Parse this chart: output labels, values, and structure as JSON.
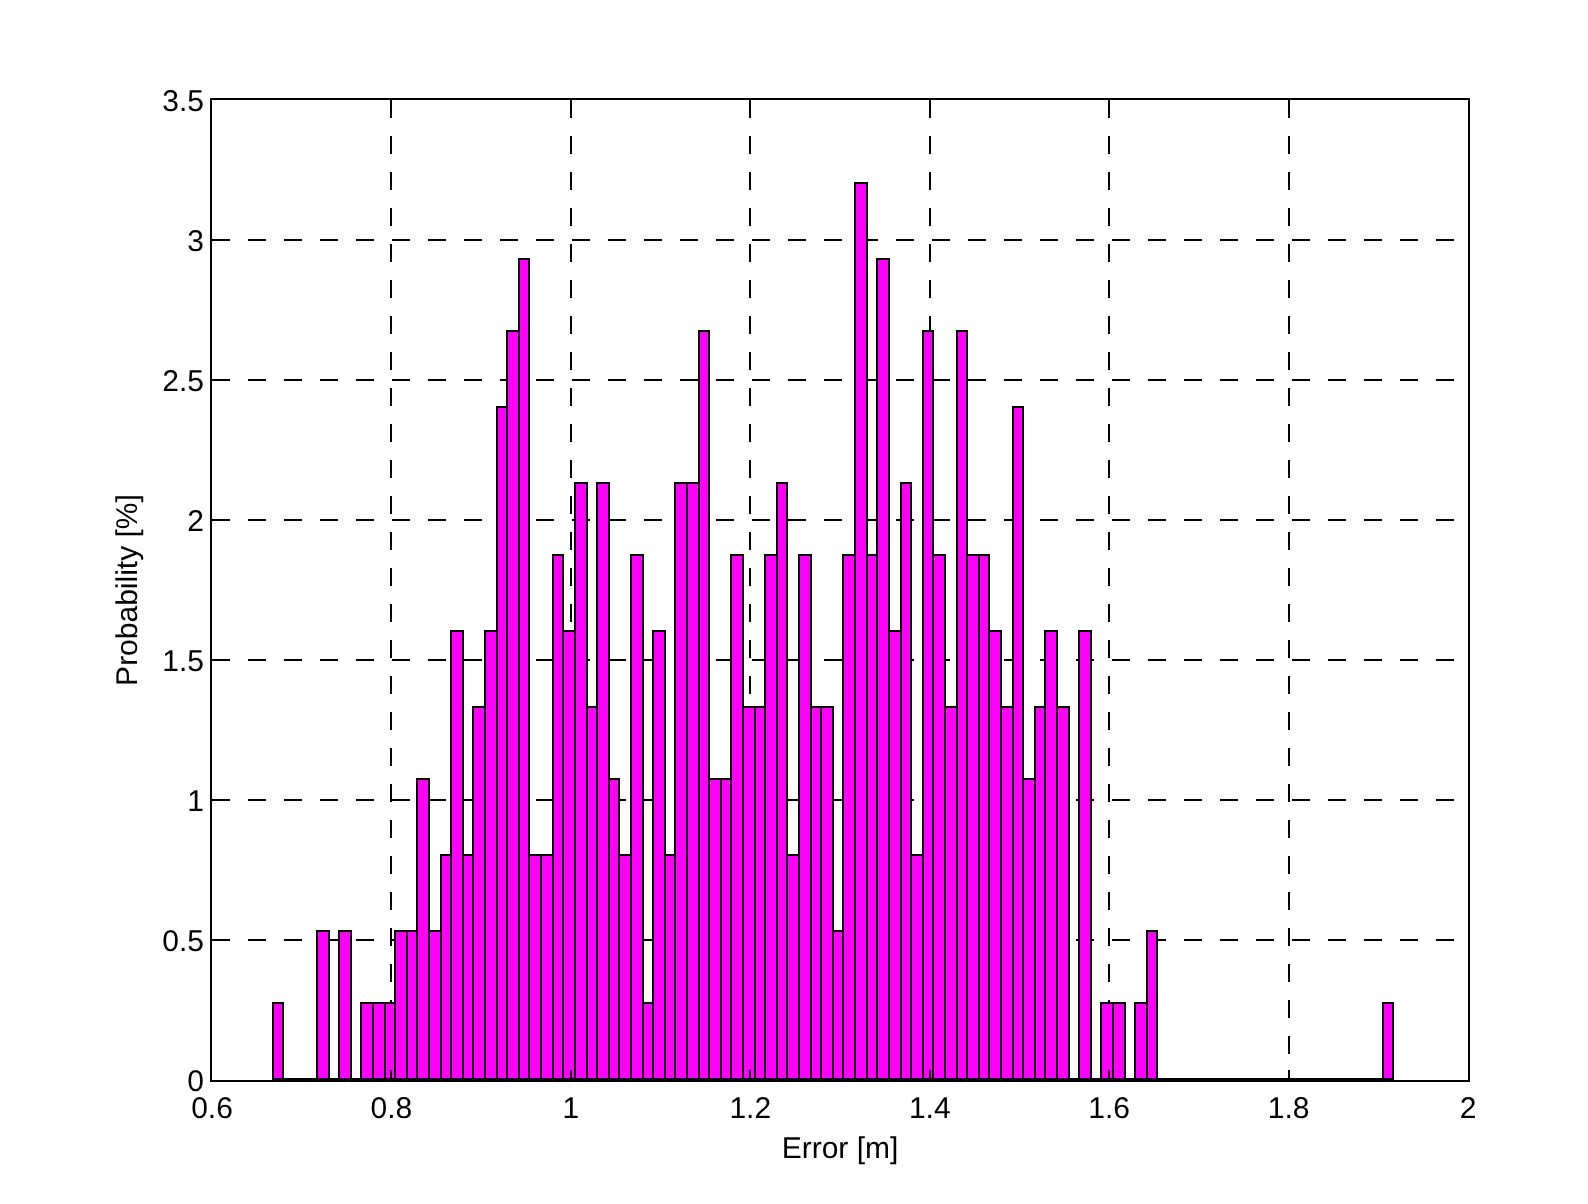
{
  "chart_data": {
    "type": "histogram",
    "xlabel": "Error [m]",
    "ylabel": "Probability [%]",
    "color": "#ff00ff",
    "bins": [
      0.668,
      0.6805,
      0.693,
      0.7055,
      0.718,
      0.7305,
      0.743,
      0.7555,
      0.768,
      0.7805,
      0.793,
      0.8055,
      0.818,
      0.8305,
      0.843,
      0.8555,
      0.868,
      0.8805,
      0.893,
      0.9055,
      0.918,
      0.9305,
      0.943,
      0.9555,
      0.968,
      0.9805,
      0.993,
      1.0055,
      1.018,
      1.0305,
      1.043,
      1.0555,
      1.068,
      1.0805,
      1.093,
      1.1055,
      1.118,
      1.1305,
      1.143,
      1.1555,
      1.168,
      1.1805,
      1.193,
      1.2055,
      1.218,
      1.2305,
      1.243,
      1.2555,
      1.268,
      1.2805,
      1.293,
      1.3055,
      1.318,
      1.3305,
      1.343,
      1.3555,
      1.368,
      1.3805,
      1.393,
      1.4055,
      1.418,
      1.4305,
      1.443,
      1.4555,
      1.468,
      1.4805,
      1.493,
      1.5055,
      1.518,
      1.5305,
      1.543,
      1.5555,
      1.568,
      1.5805,
      1.593,
      1.6055,
      1.618,
      1.6305,
      1.643,
      1.6555,
      1.668,
      1.6805,
      1.693,
      1.7055,
      1.718,
      1.7305,
      1.743,
      1.7555,
      1.768,
      1.7805,
      1.793,
      1.8055,
      1.818,
      1.8305,
      1.843,
      1.8555,
      1.868,
      1.8805,
      1.893,
      1.9055,
      1.918
    ],
    "values": [
      0.27,
      0,
      0,
      0,
      0.53,
      0,
      0.53,
      0,
      0.27,
      0.27,
      0.27,
      0.53,
      0.53,
      1.07,
      0.53,
      0.8,
      1.6,
      0.8,
      1.33,
      1.6,
      2.4,
      2.67,
      2.93,
      0.8,
      0.8,
      1.87,
      1.6,
      2.13,
      1.33,
      2.13,
      1.07,
      0.8,
      1.87,
      0.27,
      1.6,
      0.8,
      2.13,
      2.13,
      2.67,
      1.07,
      1.07,
      1.87,
      1.33,
      1.33,
      1.87,
      2.13,
      0.8,
      1.87,
      1.33,
      1.33,
      0.53,
      1.87,
      3.2,
      1.87,
      2.93,
      1.6,
      2.13,
      0.8,
      2.67,
      1.87,
      1.33,
      2.67,
      1.87,
      1.87,
      1.6,
      1.33,
      2.4,
      1.07,
      1.33,
      1.6,
      1.33,
      0,
      1.6,
      0,
      0.27,
      0.27,
      0,
      0.27,
      0.53,
      0,
      0,
      0,
      0,
      0,
      0,
      0,
      0,
      0,
      0,
      0,
      0,
      0,
      0,
      0,
      0,
      0,
      0,
      0,
      0,
      0.27
    ],
    "xlim": [
      0.6,
      2
    ],
    "xticks": [
      0.6,
      0.8,
      1,
      1.2,
      1.4,
      1.6,
      1.8,
      2
    ],
    "ylim": [
      0,
      3.5
    ],
    "yticks": [
      0,
      0.5,
      1,
      1.5,
      2,
      2.5,
      3,
      3.5
    ],
    "grid": true
  }
}
